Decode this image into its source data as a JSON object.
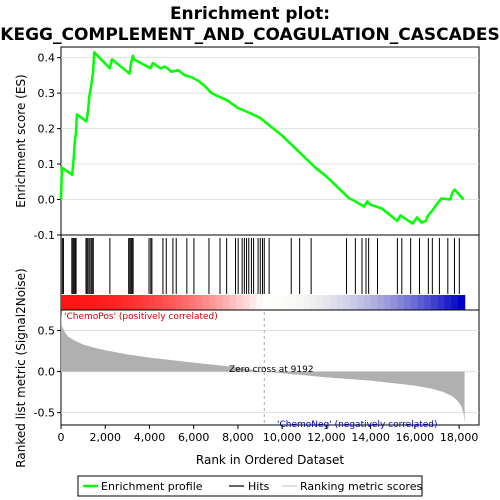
{
  "chart_data": {
    "type": "line",
    "title_line1": "Enrichment plot:",
    "title_line2": "KEGG_COMPLEMENT_AND_COAGULATION_CASCADES",
    "es_panel": {
      "ylabel": "Enrichment score (ES)",
      "ylim": [
        -0.1,
        0.43
      ],
      "yticks": [
        -0.1,
        0.0,
        0.1,
        0.2,
        0.3,
        0.4
      ],
      "ytick_labels": [
        "-0.1",
        "0.0",
        "0.1",
        "0.2",
        "0.3",
        "0.4"
      ],
      "xlim": [
        0,
        18900
      ],
      "series": [
        {
          "name": "Enrichment profile",
          "color": "#00ff00",
          "x": [
            0,
            40,
            500,
            580,
            620,
            680,
            720,
            1150,
            1220,
            1280,
            1360,
            1450,
            1500,
            2200,
            2300,
            3100,
            3150,
            3250,
            3300,
            4050,
            4150,
            4500,
            4700,
            5000,
            5300,
            5600,
            5900,
            6200,
            6500,
            6800,
            7500,
            8000,
            8500,
            9000,
            9500,
            10000,
            10500,
            11000,
            11500,
            12000,
            12500,
            13000,
            13300,
            13700,
            13850,
            14000,
            14500,
            15200,
            15350,
            15900,
            16100,
            16300,
            16500,
            16600,
            16800,
            17000,
            17200,
            17600,
            17700,
            17800,
            18200
          ],
          "y": [
            0.0,
            0.09,
            0.07,
            0.12,
            0.16,
            0.19,
            0.24,
            0.22,
            0.25,
            0.29,
            0.32,
            0.36,
            0.415,
            0.37,
            0.395,
            0.355,
            0.38,
            0.405,
            0.395,
            0.37,
            0.385,
            0.37,
            0.375,
            0.36,
            0.365,
            0.35,
            0.345,
            0.335,
            0.32,
            0.3,
            0.28,
            0.258,
            0.245,
            0.23,
            0.205,
            0.18,
            0.15,
            0.12,
            0.09,
            0.065,
            0.035,
            0.005,
            -0.005,
            -0.02,
            -0.005,
            -0.015,
            -0.025,
            -0.06,
            -0.045,
            -0.068,
            -0.05,
            -0.065,
            -0.06,
            -0.045,
            -0.03,
            -0.012,
            0.003,
            0.0,
            0.02,
            0.028,
            0.0
          ]
        }
      ]
    },
    "hits_panel": {
      "name": "Hits",
      "x": [
        60,
        110,
        490,
        540,
        590,
        640,
        680,
        1130,
        1180,
        1230,
        1300,
        1360,
        1410,
        1460,
        2210,
        3060,
        3110,
        3160,
        3210,
        3260,
        3980,
        4060,
        4110,
        4610,
        4760,
        5060,
        5210,
        5690,
        6010,
        6690,
        7190,
        7490,
        7890,
        8010,
        8190,
        8290,
        8390,
        8490,
        8610,
        8710,
        8910,
        9010,
        9110,
        9190,
        9410,
        10410,
        10790,
        11310,
        12910,
        13310,
        13610,
        13790,
        13910,
        14310,
        15210,
        15410,
        15810,
        16210,
        16610,
        16790,
        17110,
        17490,
        17790,
        18010
      ]
    },
    "rank_panel": {
      "name": "Ranking metric scores",
      "ylabel": "Ranked list metric (Signal2Noise)",
      "xlabel": "Rank in Ordered Dataset",
      "ylim": [
        -0.65,
        0.75
      ],
      "yticks": [
        -0.5,
        0.0,
        0.5
      ],
      "ytick_labels": [
        "-0.5",
        "0.0",
        "0.5"
      ],
      "xticks": [
        0,
        2000,
        4000,
        6000,
        8000,
        10000,
        12000,
        14000,
        16000,
        18000
      ],
      "xtick_labels": [
        "0",
        "2,000",
        "4,000",
        "6,000",
        "8,000",
        "10,000",
        "12,000",
        "14,000",
        "16,000",
        "18,000"
      ],
      "x": [
        0,
        40,
        150,
        300,
        600,
        1000,
        1500,
        2000,
        3000,
        4000,
        5000,
        6000,
        7000,
        8000,
        8700,
        9192,
        10000,
        11000,
        12000,
        13000,
        14000,
        15000,
        16000,
        16800,
        17300,
        17700,
        17950,
        18100,
        18200,
        18250
      ],
      "y": [
        0.72,
        0.56,
        0.49,
        0.43,
        0.38,
        0.33,
        0.29,
        0.26,
        0.21,
        0.17,
        0.14,
        0.11,
        0.08,
        0.05,
        0.02,
        0.0,
        -0.02,
        -0.045,
        -0.07,
        -0.09,
        -0.11,
        -0.14,
        -0.17,
        -0.21,
        -0.25,
        -0.3,
        -0.36,
        -0.42,
        -0.5,
        -0.62
      ],
      "zero_cross_label": "Zero cross at 9192",
      "zero_cross_x": 9192,
      "pos_label": "'ChemoPos' (positively correlated)",
      "neg_label": "'ChemoNeg' (negatively correlated)"
    },
    "colors": {
      "profile": "#00ff00",
      "pos": "#ff0000",
      "neg": "#0000cc",
      "fill": "#b0b0b0"
    },
    "legend": {
      "placement": "bottom",
      "items": [
        "Enrichment profile",
        "Hits",
        "Ranking metric scores"
      ]
    }
  }
}
